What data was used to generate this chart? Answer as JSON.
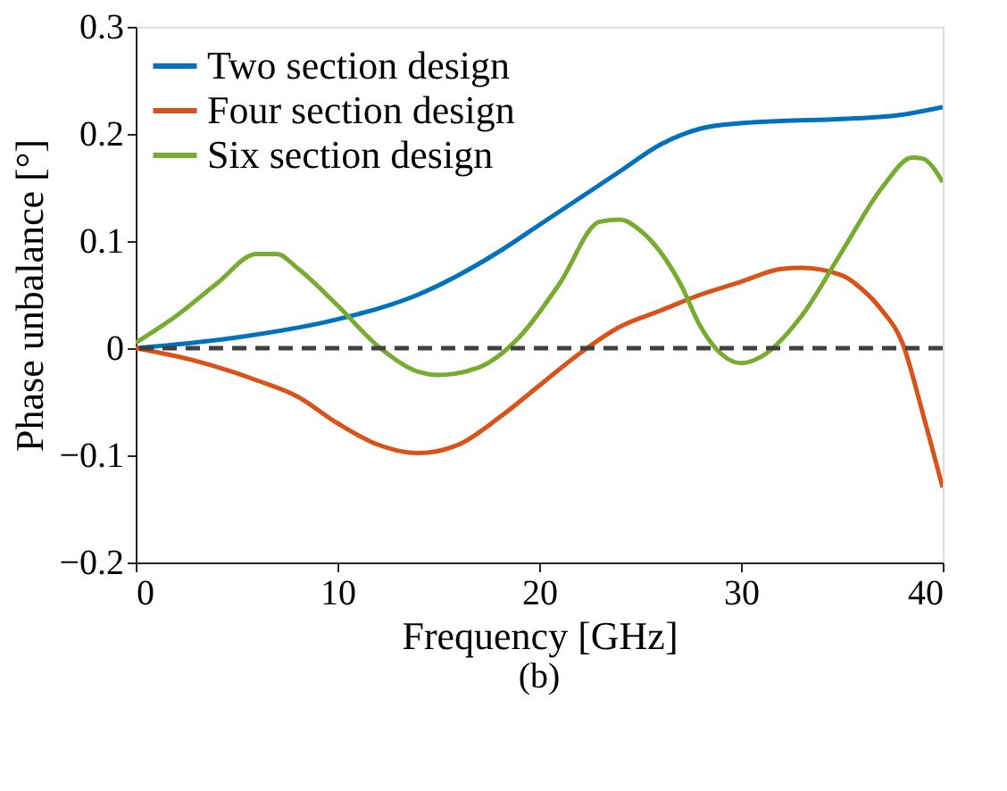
{
  "chart_data": {
    "type": "line",
    "xlabel": "Frequency [GHz]",
    "ylabel": "Phase unbalance [°]",
    "annotations": [
      "(b)"
    ],
    "xlim": [
      0,
      40
    ],
    "ylim": [
      -0.2,
      0.3
    ],
    "xticks": [
      0,
      10,
      20,
      30,
      40
    ],
    "yticks": [
      {
        "value": -0.2,
        "label": "−0.2"
      },
      {
        "value": -0.1,
        "label": "−0.1"
      },
      0,
      0.1,
      0.2,
      0.3
    ],
    "grid": false,
    "legend": "top left",
    "line_style": "solid",
    "marker": "none",
    "series": [
      {
        "name": "Two section design",
        "color": "#0072bd",
        "x": [
          0,
          5,
          10,
          14,
          18,
          20,
          22,
          24,
          26,
          28,
          30,
          32,
          35,
          38,
          40
        ],
        "values": [
          0,
          0.01,
          0.027,
          0.05,
          0.09,
          0.115,
          0.14,
          0.165,
          0.19,
          0.205,
          0.21,
          0.212,
          0.214,
          0.218,
          0.225
        ]
      },
      {
        "name": "Four section design",
        "color": "#d95319",
        "x": [
          0,
          3,
          6,
          8,
          10,
          12,
          14,
          16,
          18,
          20,
          22,
          24,
          26,
          28,
          30,
          32,
          33,
          35,
          36,
          37,
          38,
          39,
          40
        ],
        "values": [
          0,
          -0.012,
          -0.03,
          -0.045,
          -0.07,
          -0.09,
          -0.098,
          -0.09,
          -0.065,
          -0.035,
          -0.005,
          0.02,
          0.035,
          0.05,
          0.062,
          0.074,
          0.075,
          0.068,
          0.055,
          0.035,
          0.005,
          -0.06,
          -0.13
        ]
      },
      {
        "name": "Six section design",
        "color": "#77ac30",
        "x": [
          0,
          2,
          4,
          6,
          7,
          8,
          10,
          12,
          14,
          15,
          17,
          19,
          21,
          23,
          24,
          25,
          27,
          28,
          29,
          30,
          31,
          33,
          35,
          37,
          38.5,
          39,
          40
        ],
        "values": [
          0.005,
          0.03,
          0.06,
          0.088,
          0.088,
          0.075,
          0.04,
          0.002,
          -0.022,
          -0.025,
          -0.018,
          0.01,
          0.06,
          0.118,
          0.12,
          0.11,
          0.06,
          0.02,
          -0.005,
          -0.014,
          -0.008,
          0.03,
          0.09,
          0.15,
          0.178,
          0.177,
          0.155
        ]
      }
    ],
    "ref_lines": [
      {
        "axis": "y",
        "value": 0,
        "color": "#404040",
        "line_style": "dashed"
      }
    ]
  }
}
